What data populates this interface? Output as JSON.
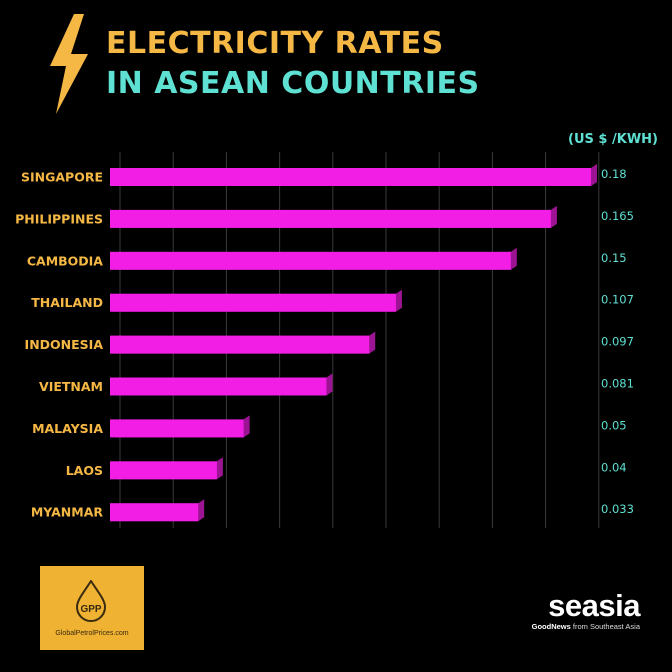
{
  "header": {
    "title_line1": "ELECTRICITY RATES",
    "title_line2": "IN ASEAN COUNTRIES"
  },
  "chart_data": {
    "type": "bar",
    "orientation": "horizontal",
    "title": "ELECTRICITY RATES IN ASEAN COUNTRIES",
    "unit_label": "(US $ /KWH)",
    "categories": [
      "SINGAPORE",
      "PHILIPPINES",
      "CAMBODIA",
      "THAILAND",
      "INDONESIA",
      "VIETNAM",
      "MALAYSIA",
      "LAOS",
      "MYANMAR"
    ],
    "values": [
      0.18,
      0.165,
      0.15,
      0.107,
      0.097,
      0.081,
      0.05,
      0.04,
      0.033
    ],
    "value_labels": [
      "0.18",
      "0.165",
      "0.15",
      "0.107",
      "0.097",
      "0.081",
      "0.05",
      "0.04",
      "0.033"
    ],
    "xlim": [
      0,
      0.18
    ],
    "grid": true,
    "colors": {
      "bar": "#f21ee6",
      "bar_shadow": "#9c1493",
      "category_label": "#f6b845",
      "value_label": "#5ee0d3",
      "grid": "#3a3a3a"
    }
  },
  "footer": {
    "left_logo_text": "GPP",
    "left_logo_url": "GlobalPetrolPrices.com",
    "brand_name": "seasia",
    "brand_tag_bold": "GoodNews",
    "brand_tag_rest": " from Southeast Asia"
  }
}
